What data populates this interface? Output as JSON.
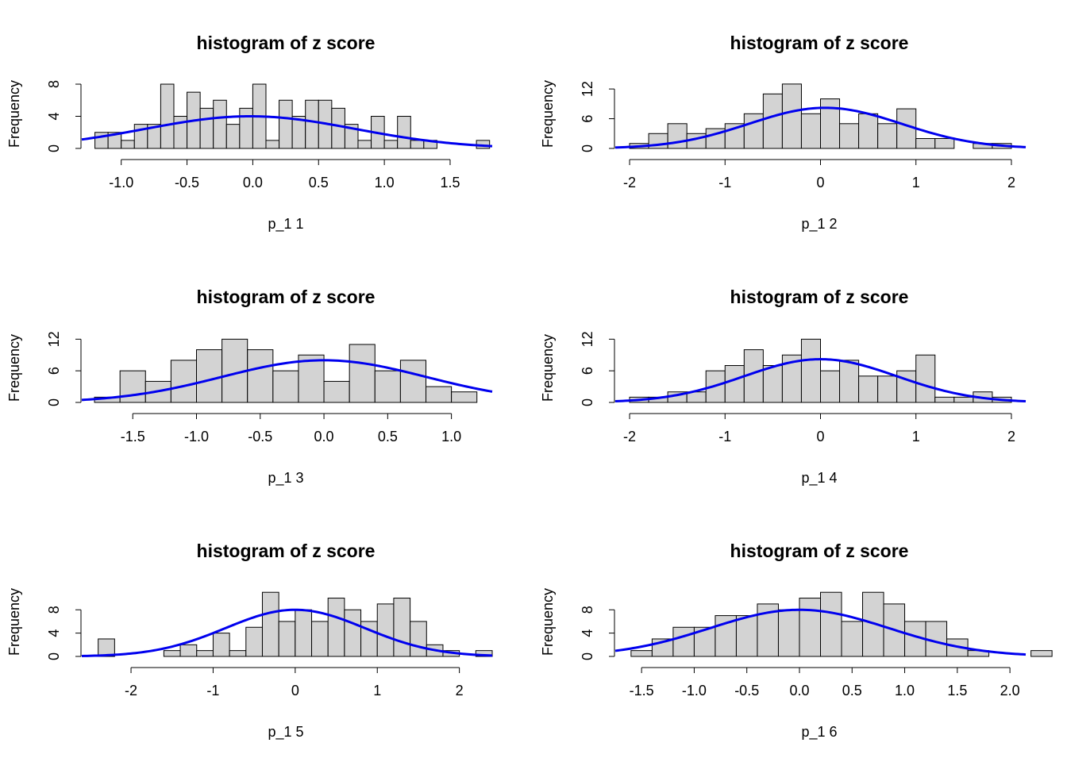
{
  "colors": {
    "bar_fill": "#d3d3d3",
    "bar_stroke": "#000000",
    "curve": "#0000ee",
    "axis": "#000000"
  },
  "chart_data": [
    {
      "type": "bar",
      "title": "histogram of z score",
      "xlabel": "p_1 1",
      "ylabel": "Frequency",
      "xlim": [
        -1.3,
        1.82
      ],
      "ylim": [
        0,
        8.2
      ],
      "binwidth": 0.1,
      "bin_start": -1.2,
      "values": [
        2,
        2,
        1,
        3,
        3,
        8,
        4,
        7,
        5,
        6,
        3,
        5,
        8,
        1,
        6,
        4,
        6,
        6,
        5,
        3,
        1,
        4,
        1,
        4,
        1,
        1,
        0,
        0,
        0,
        1
      ],
      "xticks": [
        "-1.0",
        "-0.5",
        "0.0",
        "0.5",
        "1.0",
        "1.5"
      ],
      "xtick_values": [
        -1.0,
        -0.5,
        0.0,
        0.5,
        1.0,
        1.5
      ],
      "yticks": [
        "0",
        "4",
        "8"
      ],
      "ytick_values": [
        0,
        4,
        8
      ],
      "curve": {
        "type": "normal-density",
        "mean": -0.02,
        "sd": 0.8,
        "peak": 4.0
      }
    },
    {
      "type": "bar",
      "title": "histogram of z score",
      "xlabel": "p_1 2",
      "ylabel": "Frequency",
      "xlim": [
        -2.15,
        2.15
      ],
      "ylim": [
        0,
        13.3
      ],
      "binwidth": 0.2,
      "bin_start": -2.0,
      "values": [
        1,
        3,
        5,
        3,
        4,
        5,
        7,
        11,
        13,
        7,
        10,
        5,
        7,
        5,
        8,
        2,
        2,
        0,
        1,
        1
      ],
      "xticks": [
        "-2",
        "-1",
        "0",
        "1",
        "2"
      ],
      "xtick_values": [
        -2,
        -1,
        0,
        1,
        2
      ],
      "yticks": [
        "0",
        "6",
        "12"
      ],
      "ytick_values": [
        0,
        6,
        12
      ],
      "curve": {
        "type": "normal-density",
        "mean": 0.05,
        "sd": 0.8,
        "peak": 8.2
      }
    },
    {
      "type": "bar",
      "title": "histogram of z score",
      "xlabel": "p_1 3",
      "ylabel": "Frequency",
      "xlim": [
        -1.9,
        1.32
      ],
      "ylim": [
        0,
        12.5
      ],
      "binwidth": 0.2,
      "bin_start": -1.8,
      "values": [
        1,
        6,
        4,
        8,
        10,
        12,
        10,
        6,
        9,
        4,
        11,
        6,
        8,
        3,
        2
      ],
      "xticks": [
        "-1.5",
        "-1.0",
        "-0.5",
        "0.0",
        "0.5",
        "1.0"
      ],
      "xtick_values": [
        -1.5,
        -1.0,
        -0.5,
        0.0,
        0.5,
        1.0
      ],
      "yticks": [
        "0",
        "6",
        "12"
      ],
      "ytick_values": [
        0,
        6,
        12
      ],
      "curve": {
        "type": "normal-density",
        "mean": 0.0,
        "sd": 0.8,
        "peak": 8.0
      }
    },
    {
      "type": "bar",
      "title": "histogram of z score",
      "xlabel": "p_1 4",
      "ylabel": "Frequency",
      "xlim": [
        -2.15,
        2.15
      ],
      "ylim": [
        0,
        12.5
      ],
      "binwidth": 0.2,
      "bin_start": -2.0,
      "values": [
        1,
        1,
        2,
        2,
        6,
        7,
        10,
        7,
        9,
        12,
        6,
        8,
        5,
        5,
        6,
        9,
        1,
        1,
        2,
        1
      ],
      "xticks": [
        "-2",
        "-1",
        "0",
        "1",
        "2"
      ],
      "xtick_values": [
        -2,
        -1,
        0,
        1,
        2
      ],
      "yticks": [
        "0",
        "6",
        "12"
      ],
      "ytick_values": [
        0,
        6,
        12
      ],
      "curve": {
        "type": "normal-density",
        "mean": 0.0,
        "sd": 0.8,
        "peak": 8.2
      }
    },
    {
      "type": "bar",
      "title": "histogram of z score",
      "xlabel": "p_1 5",
      "ylabel": "Frequency",
      "xlim": [
        -2.6,
        2.4
      ],
      "ylim": [
        0,
        11.3
      ],
      "binwidth": 0.2,
      "bin_start": -2.4,
      "values": [
        3,
        0,
        0,
        0,
        1,
        2,
        1,
        4,
        1,
        5,
        11,
        6,
        8,
        6,
        10,
        8,
        6,
        9,
        10,
        6,
        2,
        1,
        0,
        1
      ],
      "xticks": [
        "-2",
        "-1",
        "0",
        "1",
        "2"
      ],
      "xtick_values": [
        -2,
        -1,
        0,
        1,
        2
      ],
      "yticks": [
        "0",
        "4",
        "8"
      ],
      "ytick_values": [
        0,
        4,
        8
      ],
      "curve": {
        "type": "normal-density",
        "mean": 0.0,
        "sd": 0.85,
        "peak": 8.0
      }
    },
    {
      "type": "bar",
      "title": "histogram of z score",
      "xlabel": "p_1 6",
      "ylabel": "Frequency",
      "xlim": [
        -1.75,
        2.15
      ],
      "ylim": [
        0,
        11.3
      ],
      "binwidth": 0.2,
      "bin_start": -1.6,
      "values": [
        1,
        3,
        5,
        5,
        7,
        7,
        9,
        8,
        10,
        11,
        6,
        11,
        9,
        6,
        6,
        3,
        1,
        0,
        0,
        1
      ],
      "xticks": [
        "-1.5",
        "-1.0",
        "-0.5",
        "0.0",
        "0.5",
        "1.0",
        "1.5",
        "2.0"
      ],
      "xtick_values": [
        -1.5,
        -1.0,
        -0.5,
        0.0,
        0.5,
        1.0,
        1.5,
        2.0
      ],
      "yticks": [
        "0",
        "4",
        "8"
      ],
      "ytick_values": [
        0,
        4,
        8
      ],
      "curve": {
        "type": "normal-density",
        "mean": 0.0,
        "sd": 0.85,
        "peak": 8.0
      }
    }
  ]
}
